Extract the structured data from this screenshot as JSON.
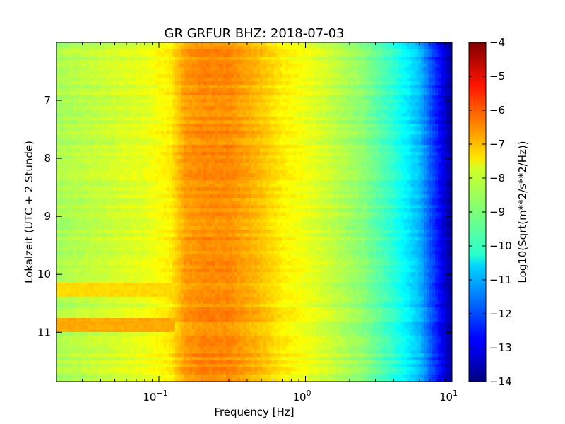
{
  "chart_data": {
    "type": "heatmap",
    "title": "GR GRFUR BHZ: 2018-07-03",
    "xlabel": "Frequency [Hz]",
    "ylabel": "Lokalzeit (UTC + 2 Stunde)",
    "x_scale": "log",
    "x_range_hz": [
      0.02,
      10
    ],
    "x_ticks": [
      {
        "value": 0.1,
        "base": "10",
        "exp": "−1"
      },
      {
        "value": 1,
        "base": "10",
        "exp": "0"
      },
      {
        "value": 10,
        "base": "10",
        "exp": "1"
      }
    ],
    "y_range_hours": [
      6.0,
      11.85
    ],
    "y_ticks": [
      "7",
      "8",
      "9",
      "10",
      "11"
    ],
    "colorbar": {
      "label": "Log10(Sqrt(m**2/s**2/Hz))",
      "range": [
        -14,
        -4
      ],
      "ticks": [
        "−4",
        "−5",
        "−6",
        "−7",
        "−8",
        "−9",
        "−10",
        "−11",
        "−12",
        "−13",
        "−14"
      ],
      "colormap": "jet"
    },
    "spectrum_profile": {
      "frequency_hz": [
        0.02,
        0.04,
        0.06,
        0.08,
        0.12,
        0.15,
        0.2,
        0.3,
        0.45,
        0.7,
        1.0,
        1.5,
        2.5,
        4.0,
        6.0,
        8.0,
        10.0
      ],
      "level": [
        -8.6,
        -8.3,
        -8.1,
        -8.0,
        -7.6,
        -6.8,
        -6.6,
        -6.6,
        -7.0,
        -7.6,
        -7.9,
        -8.3,
        -8.9,
        -9.8,
        -10.9,
        -12.5,
        -13.8
      ]
    },
    "events": [
      {
        "time_hours": 10.25,
        "low_freq_level": -7.4
      },
      {
        "time_hours": 10.9,
        "low_freq_level": -6.9
      }
    ]
  }
}
